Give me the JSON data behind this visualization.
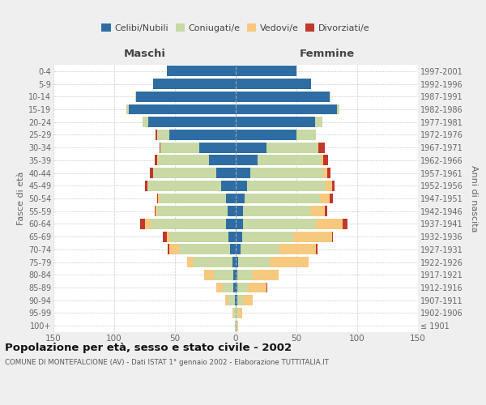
{
  "age_groups": [
    "100+",
    "95-99",
    "90-94",
    "85-89",
    "80-84",
    "75-79",
    "70-74",
    "65-69",
    "60-64",
    "55-59",
    "50-54",
    "45-49",
    "40-44",
    "35-39",
    "30-34",
    "25-29",
    "20-24",
    "15-19",
    "10-14",
    "5-9",
    "0-4"
  ],
  "birth_years": [
    "≤ 1901",
    "1902-1906",
    "1907-1911",
    "1912-1916",
    "1917-1921",
    "1922-1926",
    "1927-1931",
    "1932-1936",
    "1937-1941",
    "1942-1946",
    "1947-1951",
    "1952-1956",
    "1957-1961",
    "1962-1966",
    "1967-1971",
    "1972-1976",
    "1977-1981",
    "1982-1986",
    "1987-1991",
    "1992-1996",
    "1997-2001"
  ],
  "males_celibe": [
    0,
    0,
    1,
    2,
    2,
    3,
    5,
    6,
    8,
    7,
    8,
    12,
    16,
    22,
    30,
    55,
    72,
    88,
    82,
    68,
    57
  ],
  "males_coniugato": [
    1,
    2,
    5,
    9,
    16,
    32,
    42,
    48,
    62,
    58,
    55,
    60,
    52,
    42,
    32,
    10,
    5,
    2,
    1,
    0,
    0
  ],
  "males_vedovo": [
    0,
    1,
    3,
    5,
    8,
    5,
    8,
    3,
    5,
    1,
    1,
    1,
    0,
    1,
    0,
    0,
    0,
    0,
    0,
    0,
    0
  ],
  "males_divorziato": [
    0,
    0,
    0,
    0,
    0,
    0,
    1,
    3,
    4,
    1,
    1,
    2,
    3,
    2,
    1,
    1,
    0,
    0,
    0,
    0,
    0
  ],
  "females_nubile": [
    0,
    0,
    1,
    1,
    1,
    2,
    4,
    5,
    6,
    6,
    7,
    9,
    12,
    18,
    25,
    50,
    65,
    83,
    77,
    62,
    50
  ],
  "females_coniugata": [
    1,
    2,
    5,
    9,
    12,
    26,
    32,
    42,
    60,
    55,
    62,
    65,
    60,
    52,
    42,
    16,
    6,
    2,
    1,
    0,
    0
  ],
  "females_vedova": [
    1,
    3,
    8,
    15,
    22,
    32,
    30,
    32,
    22,
    12,
    8,
    5,
    3,
    2,
    1,
    0,
    0,
    0,
    0,
    0,
    0
  ],
  "females_divorziata": [
    0,
    0,
    0,
    1,
    0,
    0,
    1,
    1,
    4,
    2,
    3,
    2,
    3,
    4,
    5,
    0,
    0,
    0,
    0,
    0,
    0
  ],
  "color_celibe": "#2e6da4",
  "color_coniugato": "#c8d9a5",
  "color_vedovo": "#f7c97e",
  "color_divorziato": "#c0392b",
  "legend_labels": [
    "Celibi/Nubili",
    "Coniugati/e",
    "Vedovi/e",
    "Divorziati/e"
  ],
  "title": "Popolazione per età, sesso e stato civile - 2002",
  "subtitle": "COMUNE DI MONTEFALCIONE (AV) - Dati ISTAT 1° gennaio 2002 - Elaborazione TUTTITALIA.IT",
  "label_maschi": "Maschi",
  "label_femmine": "Femmine",
  "ylabel_left": "Fasce di età",
  "ylabel_right": "Anni di nascita",
  "xlim": 150,
  "background_color": "#efefef",
  "plot_bg": "#ffffff"
}
